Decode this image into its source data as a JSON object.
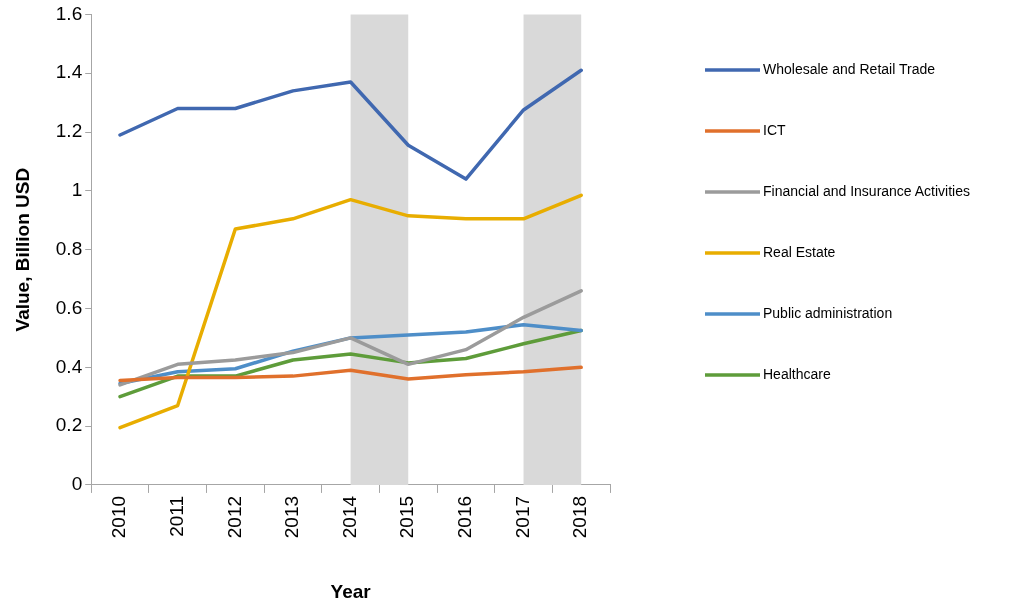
{
  "chart_data": {
    "type": "line",
    "xlabel": "Year",
    "ylabel": "Value, Billion USD",
    "categories": [
      "2010",
      "2011",
      "2012",
      "2013",
      "2014",
      "2015",
      "2016",
      "2017",
      "2018"
    ],
    "ylim": [
      0,
      1.6
    ],
    "yticks": [
      0,
      0.2,
      0.4,
      0.6,
      0.8,
      1,
      1.2,
      1.4,
      1.6
    ],
    "grid": false,
    "legend": "right",
    "marker": "none",
    "line_style": "solid",
    "bands": [
      {
        "axis": "x",
        "from": "2014",
        "to": "2015",
        "color": "#d9d9d9"
      },
      {
        "axis": "x",
        "from": "2017",
        "to": "2018",
        "color": "#d9d9d9"
      }
    ],
    "series": [
      {
        "name": "Wholesale and Retail Trade",
        "color": "#4068b0",
        "values": [
          1.19,
          1.28,
          1.28,
          1.34,
          1.37,
          1.155,
          1.04,
          1.275,
          1.41
        ]
      },
      {
        "name": "ICT",
        "color": "#e0702c",
        "values": [
          0.355,
          0.365,
          0.365,
          0.37,
          0.39,
          0.36,
          0.375,
          0.385,
          0.4
        ]
      },
      {
        "name": "Financial and Insurance Activities",
        "color": "#9b9b9b",
        "values": [
          0.34,
          0.41,
          0.425,
          0.45,
          0.5,
          0.41,
          0.46,
          0.57,
          0.66
        ]
      },
      {
        "name": "Real Estate",
        "color": "#e8ad00",
        "values": [
          0.195,
          0.27,
          0.87,
          0.905,
          0.97,
          0.915,
          0.905,
          0.905,
          0.985
        ]
      },
      {
        "name": "Public administration",
        "color": "#4e8ec8",
        "values": [
          0.345,
          0.385,
          0.395,
          0.455,
          0.5,
          0.51,
          0.52,
          0.545,
          0.525
        ]
      },
      {
        "name": "Healthcare",
        "color": "#5e9c3a",
        "values": [
          0.3,
          0.37,
          0.37,
          0.425,
          0.445,
          0.415,
          0.43,
          0.48,
          0.525
        ]
      }
    ]
  }
}
